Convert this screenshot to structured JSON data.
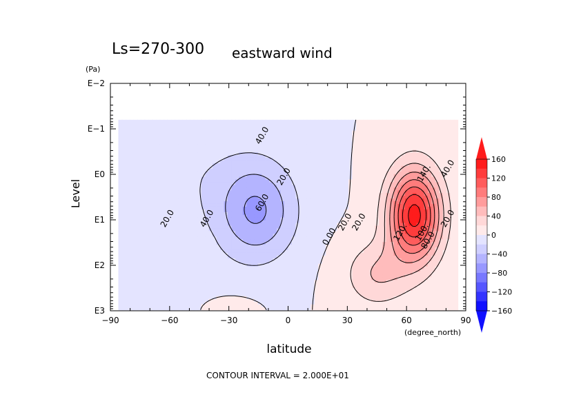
{
  "chart_data": {
    "type": "contour",
    "title": "Ls=270-300",
    "subtitle": "eastward wind",
    "xlabel": "latitude",
    "x_units": "(degree_north)",
    "ylabel": "Level",
    "y_units": "(Pa)",
    "x_range": [
      -90,
      90
    ],
    "x_ticks": [
      -90,
      -60,
      -30,
      0,
      30,
      60,
      90
    ],
    "x_tick_labels": [
      "−90",
      "−60",
      "−30",
      "0",
      "30",
      "60",
      "90"
    ],
    "y_scale": "log",
    "y_range": [
      0.01,
      1000
    ],
    "y_ticks": [
      0.01,
      0.1,
      1,
      10,
      100,
      1000
    ],
    "y_tick_labels": [
      "E−2",
      "E−1",
      "E0",
      "E1",
      "E2",
      "E3"
    ],
    "contour_interval": 20,
    "footer": "CONTOUR INTERVAL = 2.000E+01",
    "colorbar": {
      "levels": [
        -160,
        -140,
        -120,
        -100,
        -80,
        -60,
        -40,
        -20,
        0,
        20,
        40,
        60,
        80,
        100,
        120,
        140,
        160
      ],
      "labels": [
        "160",
        "120",
        "80",
        "40",
        "0",
        "−40",
        "−80",
        "−120",
        "−160"
      ],
      "colors": [
        "#1010ff",
        "#3333ff",
        "#5656ff",
        "#7878ff",
        "#9898ff",
        "#b4b4ff",
        "#cfcfff",
        "#e4e4ff",
        "#ffeaea",
        "#ffd8d8",
        "#ffbcbc",
        "#ff9c9c",
        "#ff7c7c",
        "#ff5c5c",
        "#ff3c3c",
        "#ff1c1c"
      ]
    },
    "contour_labels": [
      {
        "text": "40.0",
        "lat": -12,
        "lev": 0.15
      },
      {
        "text": "20.0",
        "lat": -1,
        "lev": 1.2
      },
      {
        "text": "60.0",
        "lat": -12,
        "lev": 4.5
      },
      {
        "text": "40.0",
        "lat": -40,
        "lev": 10
      },
      {
        "text": "20.0",
        "lat": -60,
        "lev": 10
      },
      {
        "text": "0.00",
        "lat": 22,
        "lev": 25
      },
      {
        "text": "20.0",
        "lat": 30,
        "lev": 12
      },
      {
        "text": "20.0",
        "lat": 37,
        "lev": 12
      },
      {
        "text": "120.",
        "lat": 58,
        "lev": 20
      },
      {
        "text": "100.",
        "lat": 69,
        "lev": 20
      },
      {
        "text": "80.0",
        "lat": 72,
        "lev": 30
      },
      {
        "text": "140.",
        "lat": 70,
        "lev": 1
      },
      {
        "text": "40.0",
        "lat": 82,
        "lev": 0.8
      },
      {
        "text": "20.0",
        "lat": 82,
        "lev": 10
      }
    ],
    "grid": false
  }
}
